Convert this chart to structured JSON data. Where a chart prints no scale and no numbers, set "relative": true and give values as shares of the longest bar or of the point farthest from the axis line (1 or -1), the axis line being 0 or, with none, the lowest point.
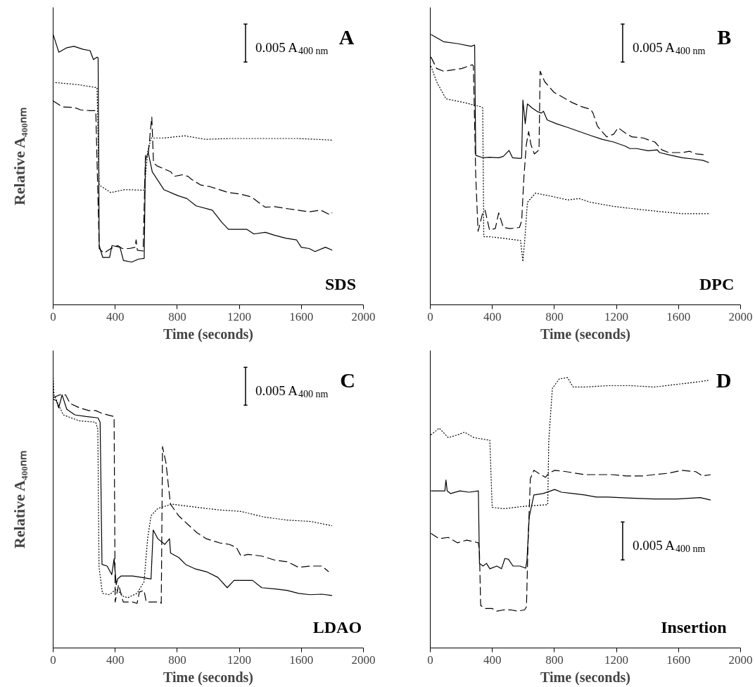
{
  "chart_data": [
    {
      "type": "line",
      "relative": true,
      "xlabel": "Time (seconds)",
      "ylabel": "Relative A₄₀₀ₙₘ",
      "xlim": [
        0,
        2000
      ],
      "xticks": [
        0,
        400,
        800,
        1200,
        1600,
        2000
      ],
      "annotations": [
        "A",
        "0.005 A$_{400 nm}$",
        "SDS"
      ],
      "series": [
        {
          "color": "#000000",
          "line_style": "solid",
          "x": [
            0,
            37,
            89,
            134,
            193,
            238,
            260,
            283,
            290,
            297,
            320,
            364,
            379,
            431,
            453,
            506,
            550,
            587,
            595,
            613,
            639,
            714,
            803,
            862,
            922,
            1026,
            1086,
            1130,
            1190,
            1249,
            1294,
            1368,
            1428,
            1502,
            1569,
            1599,
            1651,
            1688,
            1755,
            1799
          ],
          "values": [
            1.0,
            0.934,
            0.951,
            0.956,
            0.945,
            0.94,
            0.907,
            0.916,
            0.913,
            0.219,
            0.175,
            0.175,
            0.219,
            0.213,
            0.164,
            0.158,
            0.169,
            0.172,
            0.536,
            0.563,
            0.492,
            0.426,
            0.404,
            0.393,
            0.366,
            0.35,
            0.306,
            0.279,
            0.279,
            0.279,
            0.262,
            0.268,
            0.257,
            0.246,
            0.24,
            0.213,
            0.208,
            0.197,
            0.213,
            0.202
          ]
        },
        {
          "color": "#000000",
          "line_style": "dashed",
          "x": [
            0,
            59,
            134,
            178,
            238,
            275,
            297,
            327,
            372,
            416,
            446,
            491,
            528,
            535,
            543,
            580,
            595,
            613,
            629,
            636,
            647,
            669,
            714,
            758,
            781,
            833,
            870,
            892,
            952,
            1011,
            1071,
            1130,
            1205,
            1279,
            1339,
            1368,
            1428,
            1517,
            1576,
            1651,
            1725,
            1785,
            1799
          ],
          "values": [
            0.754,
            0.732,
            0.73,
            0.721,
            0.718,
            0.718,
            0.208,
            0.191,
            0.208,
            0.219,
            0.208,
            0.208,
            0.213,
            0.24,
            0.202,
            0.199,
            0.552,
            0.557,
            0.656,
            0.694,
            0.525,
            0.514,
            0.503,
            0.492,
            0.475,
            0.481,
            0.475,
            0.464,
            0.443,
            0.437,
            0.426,
            0.415,
            0.41,
            0.399,
            0.372,
            0.361,
            0.363,
            0.355,
            0.35,
            0.344,
            0.35,
            0.333,
            0.341
          ]
        },
        {
          "color": "#000000",
          "line_style": "dotted",
          "x": [
            15,
            164,
            283,
            297,
            372,
            461,
            587,
            610,
            632,
            714,
            848,
            982,
            1130,
            1279,
            1428,
            1576,
            1695,
            1799
          ],
          "values": [
            0.822,
            0.814,
            0.803,
            0.443,
            0.415,
            0.426,
            0.424,
            0.568,
            0.617,
            0.617,
            0.625,
            0.612,
            0.615,
            0.615,
            0.615,
            0.615,
            0.612,
            0.609
          ]
        }
      ]
    },
    {
      "type": "line",
      "relative": true,
      "xlabel": "Time (seconds)",
      "xlim": [
        0,
        2000
      ],
      "xticks": [
        0,
        400,
        800,
        1200,
        1600,
        2000
      ],
      "annotations": [
        "B",
        "0.005 A$_{400 nm}$",
        "DPC"
      ],
      "series": [
        {
          "color": "#000000",
          "line_style": "solid",
          "x": [
            4,
            86,
            175,
            264,
            286,
            293,
            338,
            382,
            441,
            471,
            508,
            530,
            582,
            589,
            597,
            612,
            626,
            656,
            693,
            716,
            730,
            753,
            812,
            886,
            960,
            1034,
            1108,
            1182,
            1256,
            1286,
            1330,
            1404,
            1463,
            1478,
            1552,
            1626,
            1700,
            1759,
            1796
          ],
          "values": [
            1.0,
            0.973,
            0.966,
            0.956,
            0.961,
            0.553,
            0.544,
            0.546,
            0.544,
            0.549,
            0.571,
            0.544,
            0.541,
            0.544,
            0.757,
            0.67,
            0.743,
            0.728,
            0.714,
            0.709,
            0.716,
            0.684,
            0.67,
            0.656,
            0.641,
            0.626,
            0.612,
            0.602,
            0.587,
            0.578,
            0.578,
            0.57,
            0.573,
            0.563,
            0.553,
            0.544,
            0.539,
            0.534,
            0.526
          ]
        },
        {
          "color": "#000000",
          "line_style": "dashed",
          "x": [
            4,
            41,
            86,
            145,
            204,
            271,
            278,
            293,
            308,
            338,
            353,
            382,
            419,
            441,
            471,
            515,
            575,
            589,
            604,
            619,
            634,
            649,
            671,
            701,
            708,
            738,
            797,
            856,
            915,
            974,
            1034,
            1049,
            1078,
            1137,
            1182,
            1211,
            1256,
            1300,
            1374,
            1419,
            1448,
            1493,
            1537,
            1626,
            1671,
            1715,
            1767
          ],
          "values": [
            0.917,
            0.874,
            0.864,
            0.869,
            0.874,
            0.888,
            0.883,
            0.476,
            0.272,
            0.34,
            0.35,
            0.277,
            0.282,
            0.34,
            0.286,
            0.282,
            0.286,
            0.311,
            0.476,
            0.592,
            0.641,
            0.592,
            0.558,
            0.573,
            0.864,
            0.825,
            0.786,
            0.767,
            0.748,
            0.733,
            0.723,
            0.709,
            0.66,
            0.621,
            0.631,
            0.655,
            0.636,
            0.621,
            0.617,
            0.607,
            0.602,
            0.573,
            0.563,
            0.563,
            0.568,
            0.558,
            0.555
          ]
        },
        {
          "color": "#000000",
          "line_style": "dotted",
          "x": [
            4,
            41,
            101,
            219,
            323,
            338,
            345,
            382,
            441,
            515,
            582,
            597,
            612,
            626,
            678,
            767,
            886,
            960,
            1034,
            1182,
            1330,
            1478,
            1626,
            1796
          ],
          "values": [
            0.883,
            0.825,
            0.762,
            0.748,
            0.733,
            0.728,
            0.252,
            0.252,
            0.248,
            0.243,
            0.238,
            0.16,
            0.262,
            0.379,
            0.413,
            0.403,
            0.388,
            0.393,
            0.379,
            0.364,
            0.354,
            0.345,
            0.337,
            0.337
          ]
        }
      ]
    },
    {
      "type": "line",
      "relative": true,
      "xlabel": "Time (seconds)",
      "ylabel": "Relative A₄₀₀ₙₘ",
      "xlim": [
        0,
        2000
      ],
      "xticks": [
        0,
        400,
        800,
        1200,
        1600,
        2000
      ],
      "annotations": [
        "C",
        "0.005 A$_{400 nm}$",
        "LDAO"
      ],
      "series": [
        {
          "color": "#000000",
          "line_style": "solid",
          "x": [
            0,
            21,
            36,
            58,
            88,
            140,
            214,
            289,
            303,
            315,
            348,
            378,
            393,
            407,
            415,
            437,
            512,
            571,
            631,
            645,
            675,
            720,
            750,
            757,
            809,
            854,
            913,
            988,
            1062,
            1122,
            1166,
            1225,
            1285,
            1344,
            1434,
            1508,
            1582,
            1657,
            1731,
            1798
          ],
          "values": [
            0.92,
            0.915,
            0.888,
            0.936,
            0.883,
            0.862,
            0.856,
            0.851,
            0.835,
            0.309,
            0.303,
            0.271,
            0.33,
            0.234,
            0.255,
            0.266,
            0.266,
            0.261,
            0.255,
            0.436,
            0.404,
            0.383,
            0.404,
            0.351,
            0.335,
            0.309,
            0.293,
            0.282,
            0.261,
            0.223,
            0.25,
            0.25,
            0.25,
            0.223,
            0.218,
            0.213,
            0.202,
            0.197,
            0.199,
            0.194
          ]
        },
        {
          "color": "#000000",
          "line_style": "dashed",
          "x": [
            0,
            43,
            80,
            110,
            170,
            229,
            274,
            318,
            393,
            400,
            422,
            452,
            512,
            541,
            556,
            586,
            600,
            630,
            690,
            697,
            705,
            727,
            756,
            809,
            868,
            928,
            987,
            1077,
            1136,
            1181,
            1211,
            1255,
            1344,
            1434,
            1508,
            1582,
            1657,
            1731,
            1776
          ],
          "values": [
            0.926,
            0.936,
            0.936,
            0.904,
            0.888,
            0.878,
            0.878,
            0.867,
            0.856,
            0.17,
            0.234,
            0.17,
            0.17,
            0.165,
            0.207,
            0.213,
            0.17,
            0.17,
            0.17,
            0.165,
            0.745,
            0.686,
            0.532,
            0.489,
            0.457,
            0.426,
            0.404,
            0.388,
            0.383,
            0.372,
            0.34,
            0.346,
            0.34,
            0.324,
            0.319,
            0.298,
            0.303,
            0.303,
            0.282
          ]
        },
        {
          "color": "#000000",
          "line_style": "dotted",
          "x": [
            0,
            6,
            65,
            169,
            274,
            288,
            296,
            318,
            363,
            407,
            452,
            482,
            541,
            586,
            609,
            631,
            675,
            765,
            913,
            1062,
            1211,
            1360,
            1508,
            1657,
            1798
          ],
          "values": [
            1.0,
            0.936,
            0.862,
            0.84,
            0.835,
            0.809,
            0.298,
            0.202,
            0.197,
            0.218,
            0.191,
            0.186,
            0.202,
            0.245,
            0.404,
            0.489,
            0.516,
            0.532,
            0.521,
            0.511,
            0.505,
            0.484,
            0.473,
            0.468,
            0.452
          ]
        }
      ]
    },
    {
      "type": "line",
      "relative": true,
      "xlabel": "Time (seconds)",
      "xlim": [
        0,
        2000
      ],
      "xticks": [
        0,
        400,
        800,
        1200,
        1600,
        2000
      ],
      "annotations": [
        "D",
        "0.005 A$_{400 nm}$",
        "Insertion"
      ],
      "series": [
        {
          "color": "#000000",
          "line_style": "solid",
          "x": [
            4,
            72,
            94,
            101,
            109,
            131,
            191,
            250,
            310,
            317,
            340,
            362,
            384,
            429,
            459,
            481,
            504,
            533,
            578,
            615,
            623,
            638,
            668,
            727,
            802,
            846,
            921,
            995,
            1070,
            1144,
            1293,
            1442,
            1591,
            1740,
            1807
          ],
          "values": [
            0.581,
            0.581,
            0.581,
            0.621,
            0.581,
            0.571,
            0.581,
            0.576,
            0.581,
            0.313,
            0.303,
            0.313,
            0.293,
            0.303,
            0.293,
            0.331,
            0.328,
            0.303,
            0.303,
            0.295,
            0.323,
            0.485,
            0.566,
            0.571,
            0.586,
            0.576,
            0.571,
            0.566,
            0.558,
            0.558,
            0.554,
            0.551,
            0.551,
            0.556,
            0.547
          ]
        },
        {
          "color": "#000000",
          "line_style": "dashed",
          "x": [
            4,
            57,
            116,
            176,
            235,
            310,
            317,
            325,
            355,
            399,
            429,
            474,
            519,
            563,
            608,
            620,
            630,
            645,
            668,
            712,
            742,
            764,
            802,
            876,
            995,
            1085,
            1174,
            1264,
            1368,
            1442,
            1532,
            1621,
            1711,
            1755,
            1807
          ],
          "values": [
            0.424,
            0.404,
            0.409,
            0.389,
            0.399,
            0.389,
            0.354,
            0.157,
            0.146,
            0.146,
            0.136,
            0.141,
            0.141,
            0.136,
            0.141,
            0.152,
            0.384,
            0.626,
            0.657,
            0.641,
            0.631,
            0.646,
            0.657,
            0.652,
            0.641,
            0.641,
            0.641,
            0.636,
            0.636,
            0.641,
            0.646,
            0.657,
            0.652,
            0.636,
            0.641
          ]
        },
        {
          "color": "#000000",
          "line_style": "dotted",
          "x": [
            4,
            57,
            116,
            176,
            221,
            280,
            384,
            399,
            474,
            548,
            623,
            757,
            764,
            787,
            831,
            884,
            921,
            995,
            1144,
            1293,
            1442,
            1591,
            1740,
            1792
          ],
          "values": [
            0.788,
            0.813,
            0.778,
            0.788,
            0.798,
            0.778,
            0.768,
            0.52,
            0.515,
            0.52,
            0.525,
            0.53,
            0.768,
            0.96,
            0.995,
            1.0,
            0.965,
            0.965,
            0.97,
            0.97,
            0.965,
            0.975,
            0.985,
            0.99
          ]
        }
      ]
    }
  ]
}
